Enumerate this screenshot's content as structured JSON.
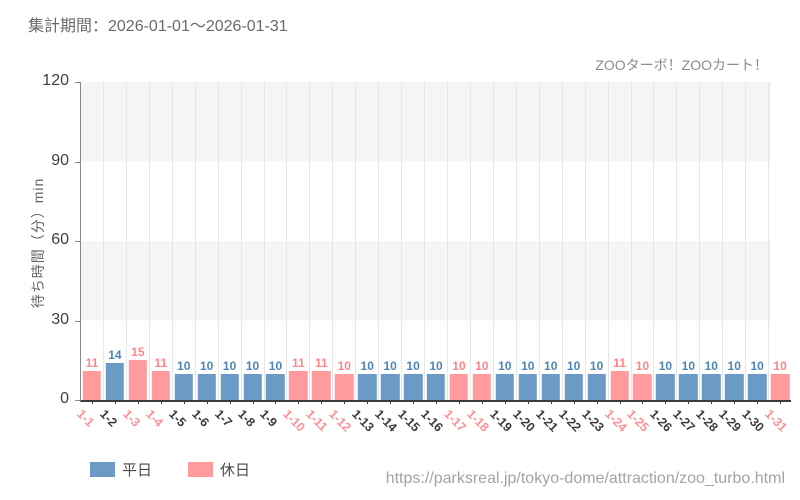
{
  "header": {
    "title": "集計期間：2026-01-01～2026-01-31",
    "attraction": "ZOOターボ！ZOOカート！"
  },
  "footer": {
    "url": "https://parksreal.jp/tokyo-dome/attraction/zoo_turbo.html"
  },
  "legend": {
    "items": [
      {
        "label": "平日",
        "type": "weekday"
      },
      {
        "label": "休日",
        "type": "holiday"
      }
    ]
  },
  "colors": {
    "weekday_bar": "#6b9ac7",
    "holiday_bar": "#ff9b9c",
    "weekday_label": "#4e84b5",
    "holiday_label": "#ff8487",
    "weekday_tick": "#3c3c3c",
    "holiday_tick": "#ff9093",
    "band_gray": "#f5f5f6",
    "gridline": "#e6e6e6"
  },
  "chart_data": {
    "type": "bar",
    "title": "集計期間：2026-01-01～2026-01-31",
    "subtitle": "ZOOターボ！ZOOカート！",
    "xlabel": "",
    "ylabel": "待ち時間（分）min",
    "ylim": [
      0,
      120
    ],
    "yticks": [
      0,
      30,
      60,
      90,
      120
    ],
    "grid": "horizontal-bands-and-vertical-gridlines",
    "legend_position": "bottom-left",
    "categories": [
      "1-1",
      "1-2",
      "1-3",
      "1-4",
      "1-5",
      "1-6",
      "1-7",
      "1-8",
      "1-9",
      "1-10",
      "1-11",
      "1-12",
      "1-13",
      "1-14",
      "1-15",
      "1-16",
      "1-17",
      "1-18",
      "1-19",
      "1-20",
      "1-21",
      "1-22",
      "1-23",
      "1-24",
      "1-25",
      "1-26",
      "1-27",
      "1-28",
      "1-29",
      "1-30",
      "1-31"
    ],
    "values": [
      11,
      14,
      15,
      11,
      10,
      10,
      10,
      10,
      10,
      11,
      11,
      10,
      10,
      10,
      10,
      10,
      10,
      10,
      10,
      10,
      10,
      10,
      10,
      11,
      10,
      10,
      10,
      10,
      10,
      10,
      10
    ],
    "day_types": [
      "holiday",
      "weekday",
      "holiday",
      "holiday",
      "weekday",
      "weekday",
      "weekday",
      "weekday",
      "weekday",
      "holiday",
      "holiday",
      "holiday",
      "weekday",
      "weekday",
      "weekday",
      "weekday",
      "holiday",
      "holiday",
      "weekday",
      "weekday",
      "weekday",
      "weekday",
      "weekday",
      "holiday",
      "holiday",
      "weekday",
      "weekday",
      "weekday",
      "weekday",
      "weekday",
      "holiday"
    ],
    "series": [
      {
        "name": "平日",
        "color": "#6b9ac7"
      },
      {
        "name": "休日",
        "color": "#ff9b9c"
      }
    ]
  }
}
